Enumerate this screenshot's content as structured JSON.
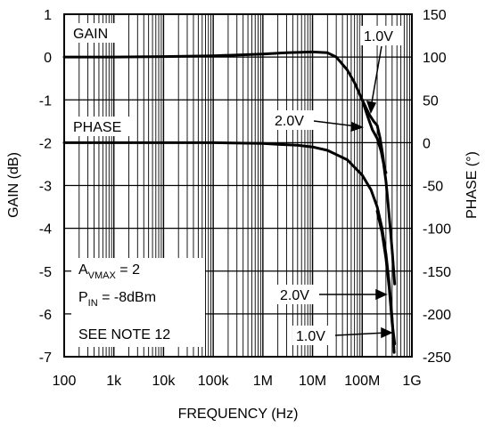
{
  "chart_data": {
    "type": "line",
    "xlabel": "FREQUENCY (Hz)",
    "ylabel_left": "GAIN (dB)",
    "ylabel_right": "PHASE (°)",
    "x_scale": "log",
    "xlim": [
      100,
      1000000000
    ],
    "x_ticks": [
      {
        "value": 100,
        "label": "100"
      },
      {
        "value": 1000,
        "label": "1k"
      },
      {
        "value": 10000,
        "label": "10k"
      },
      {
        "value": 100000,
        "label": "100k"
      },
      {
        "value": 1000000,
        "label": "1M"
      },
      {
        "value": 10000000,
        "label": "10M"
      },
      {
        "value": 100000000,
        "label": "100M"
      },
      {
        "value": 1000000000,
        "label": "1G"
      }
    ],
    "ylim_left": [
      -7,
      1
    ],
    "y_ticks_left": [
      "1",
      "0",
      "-1",
      "-2",
      "-3",
      "-4",
      "-5",
      "-6",
      "-7"
    ],
    "ylim_right": [
      -250,
      150
    ],
    "y_ticks_right": [
      "150",
      "100",
      "50",
      "0",
      "-50",
      "-100",
      "-150",
      "-200",
      "-250"
    ],
    "grid": true,
    "series": [
      {
        "name": "GAIN",
        "axis": "left",
        "curves": [
          {
            "x": [
              100,
              1000,
              10000,
              100000,
              1000000,
              3000000,
              10000000,
              20000000,
              30000000,
              50000000,
              70000000,
              100000000,
              130000000,
              160000000,
              200000000,
              240000000,
              270000000,
              300000000,
              330000000,
              360000000,
              400000000,
              430000000,
              450000000
            ],
            "y": [
              0.0,
              0.0,
              0.01,
              0.03,
              0.07,
              0.1,
              0.12,
              0.1,
              0.0,
              -0.3,
              -0.6,
              -1.0,
              -1.4,
              -1.7,
              -1.9,
              -2.2,
              -2.5,
              -2.9,
              -3.4,
              -3.9,
              -4.5,
              -5.0,
              -5.3
            ]
          },
          {
            "x": [
              100000000,
              140000000,
              170000000,
              200000000,
              230000000,
              260000000,
              280000000,
              300000000
            ],
            "y": [
              -1.0,
              -1.35,
              -1.5,
              -1.6,
              -1.9,
              -2.3,
              -2.6,
              -2.7
            ]
          }
        ]
      },
      {
        "name": "PHASE",
        "axis": "right",
        "curves": [
          {
            "x": [
              100,
              1000,
              10000,
              100000,
              1000000,
              2000000,
              5000000,
              10000000,
              20000000,
              50000000,
              100000000,
              150000000,
              200000000,
              250000000,
              300000000,
              350000000,
              400000000,
              440000000
            ],
            "y": [
              0,
              0,
              0,
              0,
              -1,
              -2,
              -3,
              -5,
              -9,
              -20,
              -38,
              -55,
              -75,
              -100,
              -130,
              -165,
              -205,
              -245
            ]
          },
          {
            "x": [
              200000000,
              250000000,
              300000000,
              350000000,
              400000000,
              450000000
            ],
            "y": [
              -80,
              -105,
              -135,
              -170,
              -210,
              -235
            ]
          }
        ]
      }
    ],
    "annotations": {
      "gain_label": "GAIN",
      "phase_label": "PHASE",
      "v_1_0_top": "1.0V",
      "v_2_0_top": "2.0V",
      "v_2_0_bottom": "2.0V",
      "v_1_0_bottom": "1.0V",
      "cond_a_main": "A",
      "cond_a_sub": "VMAX",
      "cond_a_val": " = 2",
      "cond_p_main": "P",
      "cond_p_sub": "IN",
      "cond_p_val": " = -8dBm",
      "note": "SEE NOTE 12"
    }
  }
}
